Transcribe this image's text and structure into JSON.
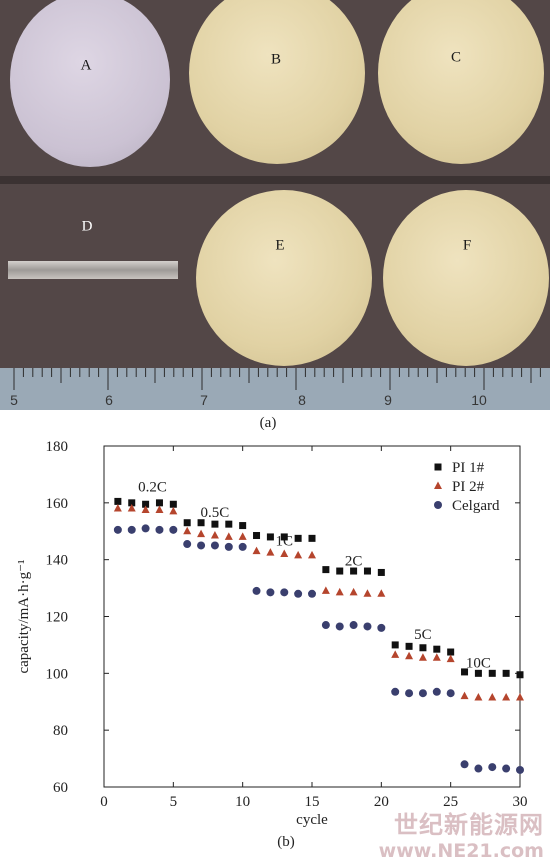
{
  "photo": {
    "discs": [
      {
        "id": "a",
        "label": "A"
      },
      {
        "id": "b",
        "label": "B"
      },
      {
        "id": "c",
        "label": "C"
      },
      {
        "id": "d",
        "label": "D"
      },
      {
        "id": "e",
        "label": "E"
      },
      {
        "id": "f",
        "label": "F"
      }
    ],
    "ruler_numbers": [
      "5",
      "6",
      "7",
      "8",
      "9",
      "10"
    ],
    "caption": "(a)"
  },
  "chart_caption": "(b)",
  "chart_data": {
    "type": "scatter",
    "title": "",
    "xlabel": "cycle",
    "ylabel": "capacity/mA·h·g⁻¹",
    "xlim": [
      0,
      30
    ],
    "ylim": [
      60,
      180
    ],
    "xticks": [
      "0",
      "5",
      "10",
      "15",
      "20",
      "25",
      "30"
    ],
    "yticks": [
      "60",
      "80",
      "100",
      "120",
      "140",
      "160",
      "180"
    ],
    "legend_position": "top-right",
    "grid": false,
    "annotations": [
      {
        "text": "0.2C",
        "x": 3.5,
        "y": 164
      },
      {
        "text": "0.5C",
        "x": 8.0,
        "y": 155
      },
      {
        "text": "1C",
        "x": 13.0,
        "y": 145
      },
      {
        "text": "2C",
        "x": 18.0,
        "y": 138
      },
      {
        "text": "5C",
        "x": 23.0,
        "y": 112
      },
      {
        "text": "10C",
        "x": 27.0,
        "y": 102
      }
    ],
    "series": [
      {
        "name": "PI 1#",
        "marker": "square",
        "color": "#111111",
        "x": [
          1,
          2,
          3,
          4,
          5,
          6,
          7,
          8,
          9,
          10,
          11,
          12,
          13,
          14,
          15,
          16,
          17,
          18,
          19,
          20,
          21,
          22,
          23,
          24,
          25,
          26,
          27,
          28,
          29,
          30
        ],
        "y": [
          160.5,
          160,
          159.5,
          160,
          159.5,
          153,
          153,
          152.5,
          152.5,
          152,
          148.5,
          148,
          148,
          147.5,
          147.5,
          136.5,
          136,
          136,
          136,
          135.5,
          110,
          109.5,
          109,
          108.5,
          107.5,
          100.5,
          100,
          100,
          100,
          99.5
        ]
      },
      {
        "name": "PI 2#",
        "marker": "triangle",
        "color": "#b5452d",
        "x": [
          1,
          2,
          3,
          4,
          5,
          6,
          7,
          8,
          9,
          10,
          11,
          12,
          13,
          14,
          15,
          16,
          17,
          18,
          19,
          20,
          21,
          22,
          23,
          24,
          25,
          26,
          27,
          28,
          29,
          30
        ],
        "y": [
          158,
          158,
          157.5,
          157.5,
          157,
          150,
          149,
          148.5,
          148,
          148,
          143,
          142.5,
          142,
          141.5,
          141.5,
          129,
          128.5,
          128.5,
          128,
          128,
          106.5,
          106,
          105.5,
          105.5,
          105,
          92,
          91.5,
          91.5,
          91.5,
          91.5
        ]
      },
      {
        "name": "Celgard",
        "marker": "circle",
        "color": "#3a3f6e",
        "x": [
          1,
          2,
          3,
          4,
          5,
          6,
          7,
          8,
          9,
          10,
          11,
          12,
          13,
          14,
          15,
          16,
          17,
          18,
          19,
          20,
          21,
          22,
          23,
          24,
          25,
          26,
          27,
          28,
          29,
          30
        ],
        "y": [
          150.5,
          150.5,
          151,
          150.5,
          150.5,
          145.5,
          145,
          145,
          144.5,
          144.5,
          129,
          128.5,
          128.5,
          128,
          128,
          117,
          116.5,
          117,
          116.5,
          116,
          93.5,
          93,
          93,
          93.5,
          93,
          68,
          66.5,
          67,
          66.5,
          66
        ]
      }
    ]
  },
  "watermark": {
    "text": "世纪新能源网",
    "url": "www.NE21.com"
  }
}
